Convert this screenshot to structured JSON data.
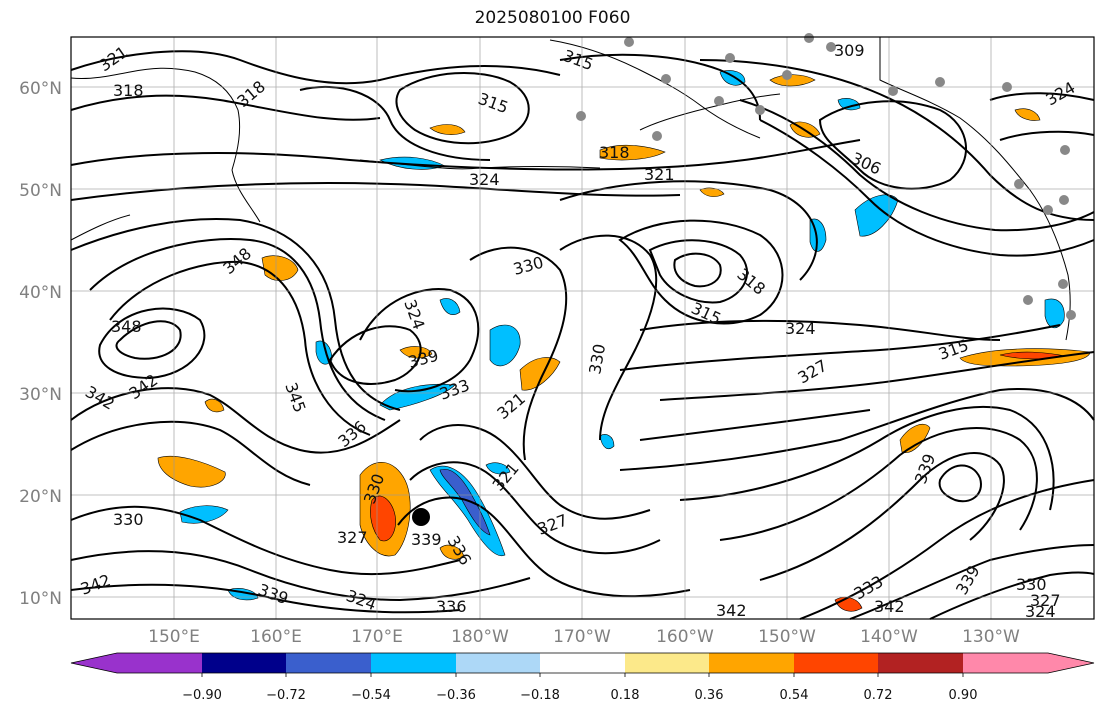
{
  "title": "2025080100 F060",
  "map": {
    "lon_labels": [
      "150°E",
      "160°E",
      "170°E",
      "180°W",
      "170°W",
      "160°W",
      "150°W",
      "140°W",
      "130°W"
    ],
    "lat_labels": [
      "60°N",
      "50°N",
      "40°N",
      "30°N",
      "20°N",
      "10°N"
    ],
    "contour_labels": [
      "321",
      "318",
      "318",
      "315",
      "315",
      "309",
      "306",
      "318",
      "324",
      "321",
      "324",
      "348",
      "348",
      "330",
      "318",
      "315",
      "324",
      "324",
      "339",
      "345",
      "342",
      "342",
      "333",
      "330",
      "315",
      "327",
      "336",
      "321",
      "330",
      "321",
      "327",
      "339",
      "339",
      "330",
      "327",
      "324",
      "336",
      "336",
      "342",
      "342",
      "333",
      "330",
      "327",
      "324",
      "342",
      "339",
      "339"
    ]
  },
  "colorbar": {
    "ticks": [
      "−0.90",
      "−0.72",
      "−0.54",
      "−0.36",
      "−0.18",
      "0.18",
      "0.36",
      "0.54",
      "0.72",
      "0.90"
    ],
    "colors": [
      "#9932cc",
      "#00008b",
      "#3a5fcd",
      "#00bfff",
      "#add8f7",
      "#ffffff",
      "#fce98a",
      "#ffa500",
      "#ff4500",
      "#b22222",
      "#ff88aa"
    ]
  }
}
